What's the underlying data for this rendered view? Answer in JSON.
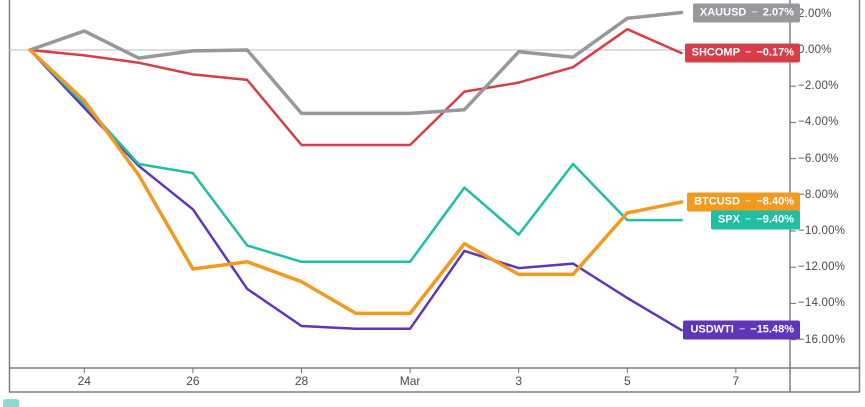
{
  "chart_data": {
    "type": "line",
    "description": "Symbol comparison chart of cumulative percent change",
    "x_dates": [
      "Feb 23",
      "Feb 24",
      "Feb 25",
      "Feb 26",
      "Feb 27",
      "Feb 28",
      "Feb 29",
      "Mar 1",
      "Mar 2",
      "Mar 3",
      "Mar 4",
      "Mar 5",
      "Mar 6"
    ],
    "x_axis": {
      "ticks": [
        {
          "label": "24",
          "day_index": 1
        },
        {
          "label": "26",
          "day_index": 3
        },
        {
          "label": "28",
          "day_index": 5
        },
        {
          "label": "Mar",
          "day_index": 7
        },
        {
          "label": "3",
          "day_index": 9
        },
        {
          "label": "5",
          "day_index": 11
        },
        {
          "label": "7",
          "day_index": 13
        }
      ]
    },
    "y_axis": {
      "unit": "%",
      "start_pct": 2,
      "step_pct": -2,
      "tick_labels": [
        "2.00%",
        "0.00%",
        "−2.00%",
        "−4.00%",
        "−6.00%",
        "−8.00%",
        "−10.00%",
        "−12.00%",
        "−14.00%",
        "−16.00%"
      ]
    },
    "ylim": [
      -16.8,
      2.8
    ],
    "grid": "horizontal zero line only",
    "legend_position": "right-edge price badges",
    "zero_line_pct": 0,
    "series": [
      {
        "name": "XAUUSD",
        "change_label": "2.07%",
        "color": "#97989C",
        "line_width": 3.5,
        "values": [
          0,
          1.05,
          -0.45,
          -0.05,
          0,
          -3.5,
          -3.5,
          -3.5,
          -3.3,
          -0.1,
          -0.4,
          1.75,
          2.07
        ]
      },
      {
        "name": "SHCOMP",
        "change_label": "−0.17%",
        "color": "#D63F4A",
        "line_width": 2.5,
        "values": [
          0,
          -0.3,
          -0.7,
          -1.35,
          -1.65,
          -5.25,
          -5.25,
          -5.25,
          -2.3,
          -1.8,
          -0.95,
          1.15,
          -0.17
        ]
      },
      {
        "name": "BTCUSD",
        "change_label": "−8.40%",
        "color": "#F2991F",
        "line_width": 3.5,
        "values": [
          0,
          -2.8,
          -6.9,
          -12.1,
          -11.7,
          -12.8,
          -14.55,
          -14.55,
          -10.7,
          -12.4,
          -12.4,
          -9.0,
          -8.4
        ]
      },
      {
        "name": "SPX",
        "change_label": "−9.40%",
        "color": "#1EBFA5",
        "line_width": 2.5,
        "values": [
          0,
          -3.0,
          -6.3,
          -6.8,
          -10.8,
          -11.7,
          -11.7,
          -11.7,
          -7.6,
          -10.2,
          -6.3,
          -9.4,
          -9.4
        ]
      },
      {
        "name": "USDWTI",
        "change_label": "−15.48%",
        "color": "#5F35B9",
        "line_width": 2.5,
        "values": [
          0,
          -3.2,
          -6.4,
          -8.8,
          -13.2,
          -15.25,
          -15.4,
          -15.4,
          -11.1,
          -12.05,
          -11.8,
          -13.7,
          -15.48
        ]
      }
    ],
    "badge_separator": "−"
  }
}
